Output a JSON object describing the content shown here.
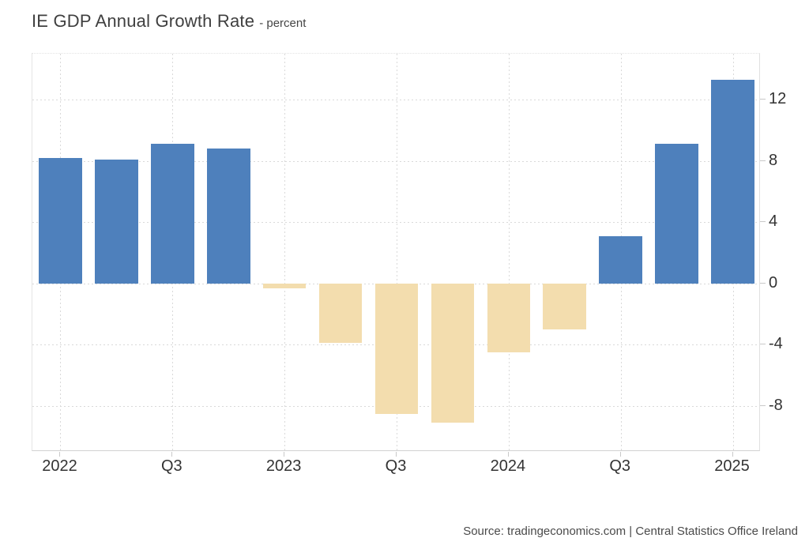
{
  "header": {
    "title": "IE GDP Annual Growth Rate",
    "subtitle": "- percent"
  },
  "footer": {
    "source": "Source: tradingeconomics.com | Central Statistics Office Ireland"
  },
  "chart_data": {
    "type": "bar",
    "title": "IE GDP Annual Growth Rate",
    "ylabel": "percent",
    "values": [
      8.2,
      8.1,
      9.1,
      8.8,
      -0.3,
      -3.9,
      -8.5,
      -9.1,
      -4.5,
      -3.0,
      3.1,
      9.1,
      13.3
    ],
    "x_ticks": [
      {
        "index": 0,
        "label": "2022"
      },
      {
        "index": 2,
        "label": "Q3"
      },
      {
        "index": 4,
        "label": "2023"
      },
      {
        "index": 6,
        "label": "Q3"
      },
      {
        "index": 8,
        "label": "2024"
      },
      {
        "index": 10,
        "label": "Q3"
      },
      {
        "index": 12,
        "label": "2025"
      }
    ],
    "y_ticks": [
      12,
      8,
      4,
      0,
      -4,
      -8
    ],
    "ylim": [
      -11,
      15
    ],
    "legend": "none",
    "grid": "dotted",
    "colors": {
      "positive": "#4e80bc",
      "negative": "#f3ddae",
      "grid": "#d9d9d9",
      "tick": "#c9c9c9",
      "tick_label": "#333333",
      "title": "#3f3f3f",
      "source_text": "#4a4a4a"
    }
  }
}
